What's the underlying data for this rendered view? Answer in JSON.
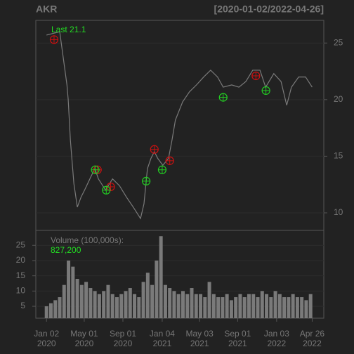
{
  "chart_data": [
    {
      "type": "line",
      "title": "AKR",
      "subtitle": "[2020-01-02/2022-04-26]",
      "annotations": [
        "Last 21.1"
      ],
      "x": [
        "2020-01-02",
        "2020-02-13",
        "2020-03-07",
        "2020-03-11",
        "2020-03-18",
        "2020-03-29",
        "2020-04-09",
        "2020-04-21",
        "2020-05-02",
        "2020-05-24",
        "2020-06-04",
        "2020-06-15",
        "2020-07-08",
        "2020-07-30",
        "2020-08-21",
        "2020-09-12",
        "2020-10-04",
        "2020-10-27",
        "2020-11-07",
        "2020-11-18",
        "2020-11-29",
        "2020-12-10",
        "2020-12-21",
        "2021-01-06",
        "2021-01-24",
        "2021-02-04",
        "2021-02-15",
        "2021-03-10",
        "2021-04-01",
        "2021-04-23",
        "2021-05-16",
        "2021-06-07",
        "2021-06-29",
        "2021-07-17",
        "2021-08-13",
        "2021-09-05",
        "2021-09-27",
        "2021-10-19",
        "2021-11-11",
        "2021-11-29",
        "2021-12-25",
        "2022-01-17",
        "2022-02-04",
        "2022-02-19",
        "2022-03-14",
        "2022-04-05",
        "2022-04-26"
      ],
      "values": [
        25.7,
        26.0,
        21.3,
        20.0,
        16.4,
        12.6,
        10.5,
        11.4,
        12.0,
        13.3,
        13.9,
        13.0,
        12.0,
        13.0,
        12.4,
        11.4,
        10.5,
        9.5,
        10.8,
        13.9,
        14.8,
        15.4,
        14.8,
        14.2,
        14.8,
        16.4,
        18.2,
        19.8,
        20.7,
        21.3,
        22.0,
        22.6,
        22.0,
        21.1,
        21.3,
        21.1,
        21.6,
        22.6,
        22.6,
        21.1,
        22.3,
        21.6,
        19.5,
        21.1,
        22.0,
        22.0,
        21.1
      ],
      "color": "#7a7a7a",
      "signals": [
        {
          "color": "#cc1111",
          "x": [
            "2020-01-26",
            "2020-06-12",
            "2020-07-24",
            "2020-12-10",
            "2021-01-28",
            "2021-10-29"
          ],
          "values": [
            25.3,
            13.8,
            12.3,
            15.6,
            14.6,
            22.1
          ]
        },
        {
          "color": "#22cc22",
          "x": [
            "2020-06-05",
            "2020-07-10",
            "2020-11-14",
            "2021-01-04",
            "2021-07-17",
            "2021-11-30"
          ],
          "values": [
            13.8,
            12.0,
            12.8,
            13.8,
            20.2,
            20.8
          ]
        }
      ],
      "xlim": [
        "2019-11-29",
        "2022-06-02"
      ],
      "xticks": [
        {
          "value": "2020-01-02",
          "label": "Jan 02 2020"
        },
        {
          "value": "2020-05-01",
          "label": "May 01 2020"
        },
        {
          "value": "2020-09-01",
          "label": "Sep 01 2020"
        },
        {
          "value": "2021-01-04",
          "label": "Jan 04 2021"
        },
        {
          "value": "2021-05-03",
          "label": "May 03 2021"
        },
        {
          "value": "2021-09-01",
          "label": "Sep 01 2021"
        },
        {
          "value": "2022-01-03",
          "label": "Jan 03 2022"
        },
        {
          "value": "2022-04-26",
          "label": "Apr 26 2022"
        }
      ],
      "ylim": [
        8.45,
        27
      ],
      "yticks": [
        10,
        15,
        20,
        25
      ],
      "grid": true
    },
    {
      "type": "bar",
      "title": "Volume (100,000s):",
      "subtitle": "827,200",
      "x": [
        "2020-01-02",
        "2020-01-16",
        "2020-01-30",
        "2020-02-13",
        "2020-02-27",
        "2020-03-12",
        "2020-03-26",
        "2020-04-09",
        "2020-04-23",
        "2020-05-07",
        "2020-05-21",
        "2020-06-04",
        "2020-06-18",
        "2020-07-02",
        "2020-07-16",
        "2020-07-30",
        "2020-08-13",
        "2020-08-27",
        "2020-09-10",
        "2020-09-24",
        "2020-10-08",
        "2020-10-22",
        "2020-11-05",
        "2020-11-19",
        "2020-12-03",
        "2020-12-17",
        "2020-12-31",
        "2021-01-14",
        "2021-01-28",
        "2021-02-11",
        "2021-02-25",
        "2021-03-11",
        "2021-03-25",
        "2021-04-08",
        "2021-04-22",
        "2021-05-06",
        "2021-05-20",
        "2021-06-03",
        "2021-06-17",
        "2021-07-01",
        "2021-07-15",
        "2021-07-29",
        "2021-08-12",
        "2021-08-26",
        "2021-09-09",
        "2021-09-23",
        "2021-10-07",
        "2021-10-21",
        "2021-11-04",
        "2021-11-18",
        "2021-12-02",
        "2021-12-16",
        "2021-12-30",
        "2022-01-13",
        "2022-01-27",
        "2022-02-10",
        "2022-02-24",
        "2022-03-10",
        "2022-03-24",
        "2022-04-07",
        "2022-04-21"
      ],
      "values": [
        5,
        6,
        7,
        8,
        12,
        20,
        18,
        14,
        12,
        13,
        11,
        10,
        9,
        10,
        12,
        9,
        8,
        9,
        10,
        11,
        9,
        8,
        13,
        16,
        12,
        20,
        28,
        12,
        11,
        10,
        9,
        10,
        9,
        11,
        9,
        9,
        8,
        13,
        9,
        8,
        8,
        9,
        7,
        8,
        9,
        8,
        9,
        9,
        8,
        10,
        9,
        8,
        10,
        9,
        8,
        8,
        9,
        8,
        8,
        7,
        9
      ],
      "color": "#7a7a7a",
      "xlim": [
        "2019-11-29",
        "2022-06-02"
      ],
      "ylim": [
        1.1,
        29.9
      ],
      "yticks": [
        5,
        10,
        15,
        20,
        25
      ],
      "grid": true
    }
  ]
}
